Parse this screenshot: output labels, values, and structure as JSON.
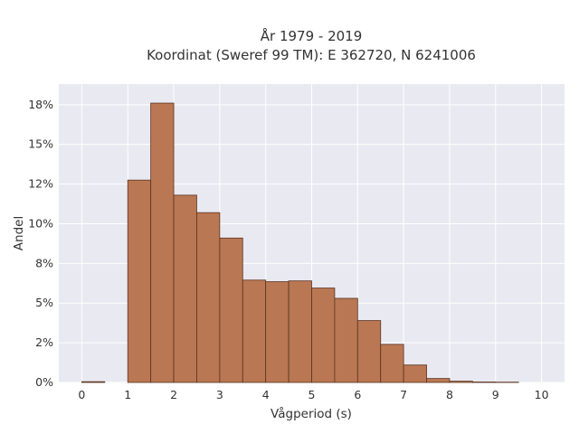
{
  "colors": {
    "plot_background": "#e9e9f1",
    "grid": "#ffffff",
    "bar_fill": "#b97753",
    "bar_stroke": "#5a3320",
    "text": "#333333"
  },
  "chart_data": {
    "type": "bar",
    "title_lines": [
      "År 1979 - 2019",
      "Koordinat (Sweref 99 TM): E 362720, N 6241006"
    ],
    "xlabel": "Vågperiod (s)",
    "ylabel": "Andel",
    "xlim": [
      -0.5,
      10.5
    ],
    "ylim": [
      0,
      18.8
    ],
    "x_ticks": [
      {
        "value": 0,
        "label": "0"
      },
      {
        "value": 1,
        "label": "1"
      },
      {
        "value": 2,
        "label": "2"
      },
      {
        "value": 3,
        "label": "3"
      },
      {
        "value": 4,
        "label": "4"
      },
      {
        "value": 5,
        "label": "5"
      },
      {
        "value": 6,
        "label": "6"
      },
      {
        "value": 7,
        "label": "7"
      },
      {
        "value": 8,
        "label": "8"
      },
      {
        "value": 9,
        "label": "9"
      },
      {
        "value": 10,
        "label": "10"
      }
    ],
    "y_ticks": [
      {
        "value": 0,
        "label": "0%"
      },
      {
        "value": 2.5,
        "label": "2%"
      },
      {
        "value": 5,
        "label": "5%"
      },
      {
        "value": 7.5,
        "label": "8%"
      },
      {
        "value": 10,
        "label": "10%"
      },
      {
        "value": 12.5,
        "label": "12%"
      },
      {
        "value": 15,
        "label": "15%"
      },
      {
        "value": 17.5,
        "label": "18%"
      }
    ],
    "grid": true,
    "bin_width": 0.5,
    "bins": [
      {
        "start": 0.0,
        "value": 0.05
      },
      {
        "start": 1.0,
        "value": 12.75
      },
      {
        "start": 1.5,
        "value": 17.6
      },
      {
        "start": 2.0,
        "value": 11.8
      },
      {
        "start": 2.5,
        "value": 10.7
      },
      {
        "start": 3.0,
        "value": 9.1
      },
      {
        "start": 3.5,
        "value": 6.45
      },
      {
        "start": 4.0,
        "value": 6.35
      },
      {
        "start": 4.5,
        "value": 6.4
      },
      {
        "start": 5.0,
        "value": 5.95
      },
      {
        "start": 5.5,
        "value": 5.3
      },
      {
        "start": 6.0,
        "value": 3.9
      },
      {
        "start": 6.5,
        "value": 2.4
      },
      {
        "start": 7.0,
        "value": 1.1
      },
      {
        "start": 7.5,
        "value": 0.25
      },
      {
        "start": 8.0,
        "value": 0.08
      },
      {
        "start": 8.5,
        "value": 0.03
      },
      {
        "start": 9.0,
        "value": 0.02
      }
    ]
  }
}
